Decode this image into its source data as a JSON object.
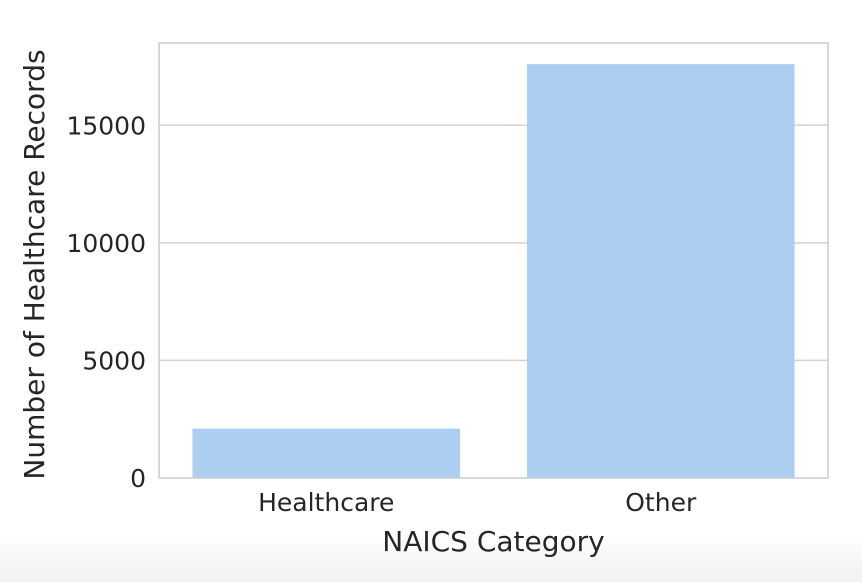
{
  "chart_data": {
    "type": "bar",
    "categories": [
      "Healthcare",
      "Other"
    ],
    "values": [
      2100,
      17600
    ],
    "xlabel": "NAICS Category",
    "ylabel": "Number of Healthcare Records",
    "ylim": [
      0,
      18500
    ],
    "yticks": [
      0,
      5000,
      10000,
      15000
    ],
    "ytick_labels": [
      "0",
      "5000",
      "10000",
      "15000"
    ],
    "grid": "y-axis on",
    "bar_color": "#abcef1",
    "grid_color": "#d3d3d3",
    "frame_color": "#cccccc"
  }
}
